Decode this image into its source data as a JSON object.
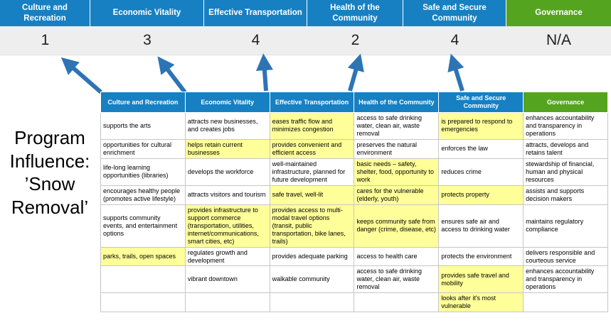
{
  "title": "Program Influence: ’Snow Removal’",
  "scoreboard": {
    "columns": [
      {
        "label": "Culture and Recreation",
        "score": "1"
      },
      {
        "label": "Economic Vitality",
        "score": "3"
      },
      {
        "label": "Effective Transportation",
        "score": "4"
      },
      {
        "label": "Health of the Community",
        "score": "2"
      },
      {
        "label": "Safe and Secure Community",
        "score": "4"
      },
      {
        "label": "Governance",
        "score": "N/A"
      }
    ]
  },
  "matrix": {
    "headers": [
      "Culture and Recreation",
      "Economic Vitality",
      "Effective Transportation",
      "Health of the Community",
      "Safe and Secure Community",
      "Governance"
    ],
    "rows": [
      [
        {
          "text": "supports the arts",
          "hl": false
        },
        {
          "text": "attracts new businesses, and creates jobs",
          "hl": false
        },
        {
          "text": "eases traffic flow and minimizes congestion",
          "hl": true
        },
        {
          "text": "access to safe drinking water, clean air, waste removal",
          "hl": false
        },
        {
          "text": "is prepared to respond to emergencies",
          "hl": true
        },
        {
          "text": "enhances accountability and transparency in operations",
          "hl": false
        }
      ],
      [
        {
          "text": "opportunities for cultural enrichment",
          "hl": false
        },
        {
          "text": "helps retain current businesses",
          "hl": true
        },
        {
          "text": "provides convenient and efficient access",
          "hl": true
        },
        {
          "text": "preserves the natural environment",
          "hl": false
        },
        {
          "text": "enforces the law",
          "hl": false
        },
        {
          "text": "attracts, develops and retains talent",
          "hl": false
        }
      ],
      [
        {
          "text": "life-long learning opportunities (libraries)",
          "hl": false
        },
        {
          "text": "develops the workforce",
          "hl": false
        },
        {
          "text": "well-maintained infrastructure, planned for future development",
          "hl": false
        },
        {
          "text": "basic needs – safety, shelter, food, opportunity to work",
          "hl": true
        },
        {
          "text": "reduces crime",
          "hl": false
        },
        {
          "text": "stewardship of financial, human and physical resources",
          "hl": false
        }
      ],
      [
        {
          "text": "encourages healthy people (promotes active lifestyle)",
          "hl": false
        },
        {
          "text": "attracts visitors and tourism",
          "hl": false
        },
        {
          "text": "safe travel, well-lit",
          "hl": true
        },
        {
          "text": "cares for the vulnerable (elderly, youth)",
          "hl": true
        },
        {
          "text": "protects property",
          "hl": true
        },
        {
          "text": "assists and supports decision makers",
          "hl": false
        }
      ],
      [
        {
          "text": "supports community events, and entertainment options",
          "hl": false
        },
        {
          "text": "provides infrastructure to support commerce (transportation, utilities, internet/communications, smart cities, etc)",
          "hl": true
        },
        {
          "text": "provides access to multi-modal travel options (transit, public transportation, bike lanes, trails)",
          "hl": true
        },
        {
          "text": "keeps community safe from danger (crime, disease, etc)",
          "hl": true
        },
        {
          "text": "ensures safe air and access to drinking water",
          "hl": false
        },
        {
          "text": "maintains regulatory compliance",
          "hl": false
        }
      ],
      [
        {
          "text": "parks, trails, open spaces",
          "hl": true
        },
        {
          "text": "regulates growth and development",
          "hl": false
        },
        {
          "text": "provides adequate parking",
          "hl": false
        },
        {
          "text": "access to health care",
          "hl": false
        },
        {
          "text": "protects the environment",
          "hl": false
        },
        {
          "text": "delivers responsible and courteous service",
          "hl": false
        }
      ],
      [
        {
          "text": "",
          "hl": false
        },
        {
          "text": "vibrant downtown",
          "hl": false
        },
        {
          "text": "walkable community",
          "hl": false
        },
        {
          "text": "access to safe drinking water, clean air, waste removal",
          "hl": false
        },
        {
          "text": "provides safe travel and mobility",
          "hl": true
        },
        {
          "text": "enhances accountability and transparency in operations",
          "hl": false
        }
      ],
      [
        {
          "text": "",
          "hl": false
        },
        {
          "text": "",
          "hl": false
        },
        {
          "text": "",
          "hl": false
        },
        {
          "text": "",
          "hl": false
        },
        {
          "text": "looks after it's most vulnerable",
          "hl": true
        },
        {
          "text": "",
          "hl": false
        }
      ]
    ]
  },
  "colors": {
    "header_blue": "#1780c2",
    "header_green": "#55a41f",
    "highlight_yellow": "#ffff99",
    "score_band_bg": "#eeeeee",
    "arrow_blue": "#2d74b5",
    "cell_border": "#c6c6c6"
  }
}
